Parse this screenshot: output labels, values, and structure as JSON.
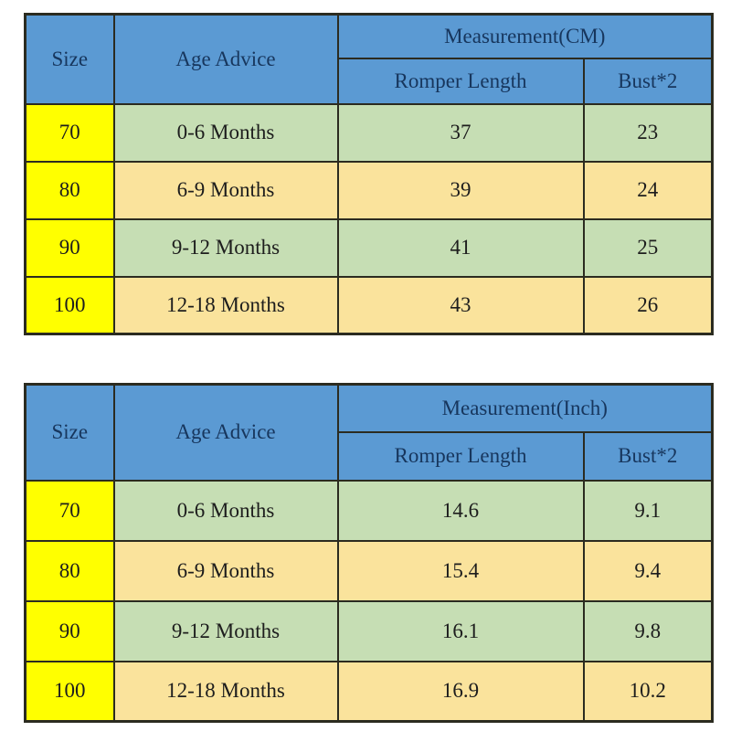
{
  "colors": {
    "header_blue": "#5b9ad3",
    "header_text_navy": "#17365d",
    "size_column_yellow": "#ffff00",
    "row_green": "#c6deb4",
    "row_tan": "#fae39c",
    "border_dark": "#2b2b20",
    "body_text": "#1d1d1d",
    "page_background": "#ffffff"
  },
  "tables": [
    {
      "id": "cm",
      "headers": {
        "size": "Size",
        "age": "Age Advice",
        "measurement": "Measurement(CM)",
        "col1": "Romper Length",
        "col2": "Bust*2"
      },
      "rows": [
        {
          "size": "70",
          "age": "0-6 Months",
          "length": "37",
          "bust": "23"
        },
        {
          "size": "80",
          "age": "6-9 Months",
          "length": "39",
          "bust": "24"
        },
        {
          "size": "90",
          "age": "9-12 Months",
          "length": "41",
          "bust": "25"
        },
        {
          "size": "100",
          "age": "12-18 Months",
          "length": "43",
          "bust": "26"
        }
      ]
    },
    {
      "id": "inch",
      "headers": {
        "size": "Size",
        "age": "Age Advice",
        "measurement": "Measurement(Inch)",
        "col1": "Romper Length",
        "col2": "Bust*2"
      },
      "rows": [
        {
          "size": "70",
          "age": "0-6 Months",
          "length": "14.6",
          "bust": "9.1"
        },
        {
          "size": "80",
          "age": "6-9 Months",
          "length": "15.4",
          "bust": "9.4"
        },
        {
          "size": "90",
          "age": "9-12 Months",
          "length": "16.1",
          "bust": "9.8"
        },
        {
          "size": "100",
          "age": "12-18 Months",
          "length": "16.9",
          "bust": "10.2"
        }
      ]
    }
  ],
  "chart_data": [
    {
      "type": "table",
      "title": "Measurement(CM)",
      "columns": [
        "Size",
        "Age Advice",
        "Romper Length",
        "Bust*2"
      ],
      "rows": [
        [
          "70",
          "0-6 Months",
          37,
          23
        ],
        [
          "80",
          "6-9 Months",
          39,
          24
        ],
        [
          "90",
          "9-12 Months",
          41,
          25
        ],
        [
          "100",
          "12-18 Months",
          43,
          26
        ]
      ]
    },
    {
      "type": "table",
      "title": "Measurement(Inch)",
      "columns": [
        "Size",
        "Age Advice",
        "Romper Length",
        "Bust*2"
      ],
      "rows": [
        [
          "70",
          "0-6 Months",
          14.6,
          9.1
        ],
        [
          "80",
          "6-9 Months",
          15.4,
          9.4
        ],
        [
          "90",
          "9-12 Months",
          16.1,
          9.8
        ],
        [
          "100",
          "12-18 Months",
          16.9,
          10.2
        ]
      ]
    }
  ]
}
